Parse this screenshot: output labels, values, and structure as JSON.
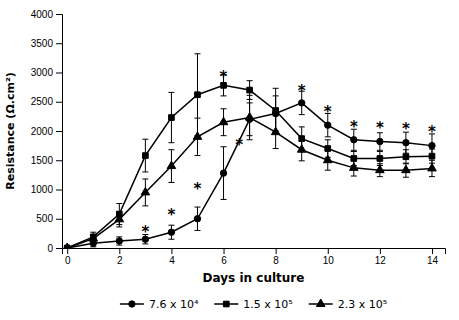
{
  "chart_data": {
    "type": "line",
    "xlabel": "Days in culture",
    "ylabel": "Resistance (Ω.cm²)",
    "x": [
      0,
      1,
      2,
      3,
      4,
      5,
      6,
      7,
      8,
      9,
      10,
      11,
      12,
      13,
      14
    ],
    "series": [
      {
        "name": "7.6 x 10⁴",
        "color": "#000000",
        "marker": "circle",
        "line_style": "solid",
        "values": [
          0,
          80,
          120,
          150,
          270,
          500,
          1280,
          2200,
          2300,
          2480,
          2100,
          1850,
          1820,
          1800,
          1750
        ],
        "errors": [
          0,
          60,
          70,
          80,
          120,
          200,
          450,
          280,
          300,
          200,
          200,
          180,
          150,
          180,
          200
        ]
      },
      {
        "name": "1.5 x 10⁵",
        "color": "#000000",
        "marker": "square",
        "line_style": "solid",
        "values": [
          0,
          190,
          580,
          1580,
          2230,
          2620,
          2780,
          2700,
          2350,
          1870,
          1700,
          1530,
          1530,
          1560,
          1570
        ],
        "errors": [
          0,
          80,
          180,
          280,
          430,
          700,
          180,
          160,
          380,
          200,
          150,
          120,
          120,
          120,
          120
        ]
      },
      {
        "name": "2.3 x 10⁵",
        "color": "#000000",
        "marker": "triangle",
        "line_style": "solid",
        "values": [
          0,
          160,
          490,
          950,
          1400,
          1900,
          2150,
          2230,
          1980,
          1680,
          1500,
          1370,
          1330,
          1330,
          1360
        ],
        "errors": [
          0,
          70,
          130,
          230,
          280,
          320,
          230,
          380,
          280,
          190,
          170,
          140,
          110,
          120,
          140
        ]
      }
    ],
    "annotations": [
      {
        "text": "*",
        "x": 3,
        "y": 310
      },
      {
        "text": "*",
        "x": 4,
        "y": 600
      },
      {
        "text": "*",
        "x": 5,
        "y": 1050
      },
      {
        "text": "*",
        "x": 6,
        "y": 2960
      },
      {
        "text": "*",
        "x": 6.6,
        "y": 1800
      },
      {
        "text": "*",
        "x": 9,
        "y": 2720
      },
      {
        "text": "*",
        "x": 10,
        "y": 2360
      },
      {
        "text": "*",
        "x": 11,
        "y": 2100
      },
      {
        "text": "*",
        "x": 12,
        "y": 2080
      },
      {
        "text": "*",
        "x": 13,
        "y": 2060
      },
      {
        "text": "*",
        "x": 14,
        "y": 2010
      }
    ],
    "xlim": [
      -0.2,
      14.5
    ],
    "xticks": [
      0,
      2,
      4,
      6,
      8,
      10,
      12,
      14
    ],
    "ylim": [
      0,
      4000
    ],
    "yticks": [
      0,
      500,
      1000,
      1500,
      2000,
      2500,
      3000,
      3500,
      4000
    ],
    "grid": false,
    "legend": "bottom"
  }
}
